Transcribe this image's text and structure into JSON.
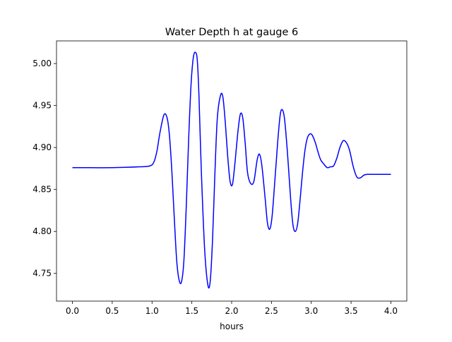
{
  "chart_data": {
    "type": "line",
    "title": "Water Depth h at gauge 6",
    "xlabel": "hours",
    "ylabel": "",
    "xlim": [
      -0.2,
      4.2
    ],
    "ylim": [
      4.717,
      5.027
    ],
    "xticks": [
      0.0,
      0.5,
      1.0,
      1.5,
      2.0,
      2.5,
      3.0,
      3.5,
      4.0
    ],
    "xtick_labels": [
      "0.0",
      "0.5",
      "1.0",
      "1.5",
      "2.0",
      "2.5",
      "3.0",
      "3.5",
      "4.0"
    ],
    "yticks": [
      4.75,
      4.8,
      4.85,
      4.9,
      4.95,
      5.0
    ],
    "ytick_labels": [
      "4.75",
      "4.80",
      "4.85",
      "4.90",
      "4.95",
      "5.00"
    ],
    "grid": false,
    "legend": "none",
    "series": [
      {
        "color": "#0000ff",
        "x": [
          0.0,
          0.5,
          0.85,
          0.97,
          1.02,
          1.06,
          1.1,
          1.15,
          1.19,
          1.22,
          1.25,
          1.28,
          1.31,
          1.34,
          1.37,
          1.4,
          1.43,
          1.46,
          1.49,
          1.52,
          1.55,
          1.57,
          1.59,
          1.62,
          1.66,
          1.7,
          1.73,
          1.76,
          1.79,
          1.82,
          1.86,
          1.89,
          1.92,
          1.95,
          1.98,
          2.01,
          2.04,
          2.08,
          2.11,
          2.14,
          2.17,
          2.2,
          2.24,
          2.28,
          2.32,
          2.35,
          2.38,
          2.42,
          2.45,
          2.48,
          2.51,
          2.55,
          2.59,
          2.62,
          2.66,
          2.7,
          2.74,
          2.77,
          2.8,
          2.83,
          2.86,
          2.89,
          2.92,
          2.95,
          2.98,
          3.01,
          3.05,
          3.09,
          3.12,
          3.16,
          3.2,
          3.24,
          3.28,
          3.32,
          3.36,
          3.4,
          3.44,
          3.48,
          3.52,
          3.55,
          3.58,
          3.62,
          3.66,
          3.7,
          3.74,
          3.78,
          3.82,
          3.86,
          3.9,
          3.94,
          3.97,
          4.0
        ],
        "y": [
          4.876,
          4.876,
          4.877,
          4.878,
          4.882,
          4.895,
          4.918,
          4.939,
          4.935,
          4.913,
          4.87,
          4.815,
          4.765,
          4.742,
          4.74,
          4.765,
          4.83,
          4.91,
          4.975,
          5.008,
          5.013,
          5.002,
          4.96,
          4.87,
          4.78,
          4.737,
          4.74,
          4.79,
          4.87,
          4.935,
          4.962,
          4.96,
          4.93,
          4.89,
          4.86,
          4.856,
          4.88,
          4.92,
          4.94,
          4.935,
          4.905,
          4.87,
          4.857,
          4.86,
          4.885,
          4.892,
          4.878,
          4.84,
          4.81,
          4.803,
          4.82,
          4.87,
          4.92,
          4.944,
          4.937,
          4.895,
          4.84,
          4.808,
          4.8,
          4.81,
          4.838,
          4.87,
          4.896,
          4.911,
          4.916,
          4.915,
          4.906,
          4.893,
          4.885,
          4.88,
          4.876,
          4.877,
          4.878,
          4.887,
          4.9,
          4.908,
          4.906,
          4.897,
          4.88,
          4.87,
          4.864,
          4.864,
          4.867,
          4.868,
          4.868,
          4.868,
          4.868,
          4.868,
          4.868,
          4.868,
          4.868,
          4.868
        ]
      }
    ]
  }
}
